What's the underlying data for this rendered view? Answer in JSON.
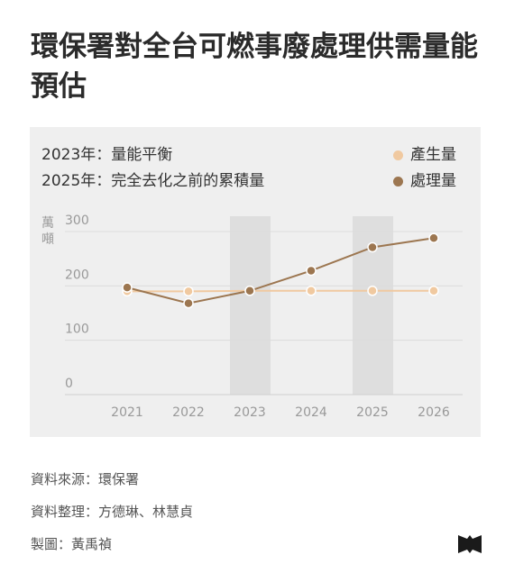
{
  "title": "環保署對全台可燃事廢處理供需量能預估",
  "notes": [
    "2023年：量能平衡",
    "2025年：完全去化之前的累積量"
  ],
  "unit_label": "萬噸",
  "legend": [
    {
      "label": "產生量",
      "color": "#f0c9a0"
    },
    {
      "label": "處理量",
      "color": "#9c7650"
    }
  ],
  "footer": {
    "source": "資料來源：環保署",
    "compiled": "資料整理：方德琳、林慧貞",
    "design": "製圖：黃禹禎"
  },
  "chart_data": {
    "type": "line",
    "x": [
      "2021",
      "2022",
      "2023",
      "2024",
      "2025",
      "2026"
    ],
    "ylim": [
      0,
      300
    ],
    "yticks": [
      0,
      100,
      200,
      300
    ],
    "highlight": [
      "2023",
      "2025"
    ],
    "grid": true,
    "legend_position": "top-right",
    "series": [
      {
        "name": "產生量",
        "values": [
          190,
          190,
          191,
          191,
          191,
          191
        ],
        "color": "#f0c9a0"
      },
      {
        "name": "處理量",
        "values": [
          197,
          168,
          191,
          228,
          271,
          288
        ],
        "color": "#9c7650"
      }
    ]
  }
}
